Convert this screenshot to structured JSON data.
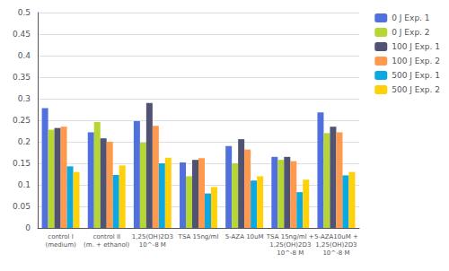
{
  "chart_data": {
    "type": "bar",
    "categories": [
      "control I\n(medium)",
      "control II\n(m. + ethanol)",
      "1,25(OH)2D3\n10^-8 M",
      "TSA 15ng/ml",
      "5-AZA 10uM",
      "TSA 15ng/ml +\n1,25(OH)2D3\n10^-8 M",
      "5-AZA10uM +\n1,25(OH)2D3\n10^-8 M"
    ],
    "series": [
      {
        "name": "0 J Exp. 1",
        "values": [
          0.278,
          0.222,
          0.248,
          0.152,
          0.19,
          0.165,
          0.268
        ]
      },
      {
        "name": "0 J Exp. 2",
        "values": [
          0.228,
          0.246,
          0.198,
          0.12,
          0.15,
          0.158,
          0.22
        ]
      },
      {
        "name": "100 J Exp. 1",
        "values": [
          0.232,
          0.208,
          0.29,
          0.158,
          0.206,
          0.165,
          0.235
        ]
      },
      {
        "name": "100 J Exp. 2",
        "values": [
          0.235,
          0.2,
          0.237,
          0.162,
          0.182,
          0.155,
          0.222
        ]
      },
      {
        "name": "500 J Exp. 1",
        "values": [
          0.143,
          0.123,
          0.15,
          0.08,
          0.11,
          0.083,
          0.122
        ]
      },
      {
        "name": "500 J Exp. 2",
        "values": [
          0.13,
          0.145,
          0.163,
          0.095,
          0.12,
          0.112,
          0.13
        ]
      }
    ],
    "ylim": [
      0,
      0.5
    ],
    "yticks": [
      0,
      0.05,
      0.1,
      0.15,
      0.2,
      0.25,
      0.3,
      0.35,
      0.4,
      0.45,
      0.5
    ],
    "grid": true,
    "legend": "upper right"
  }
}
